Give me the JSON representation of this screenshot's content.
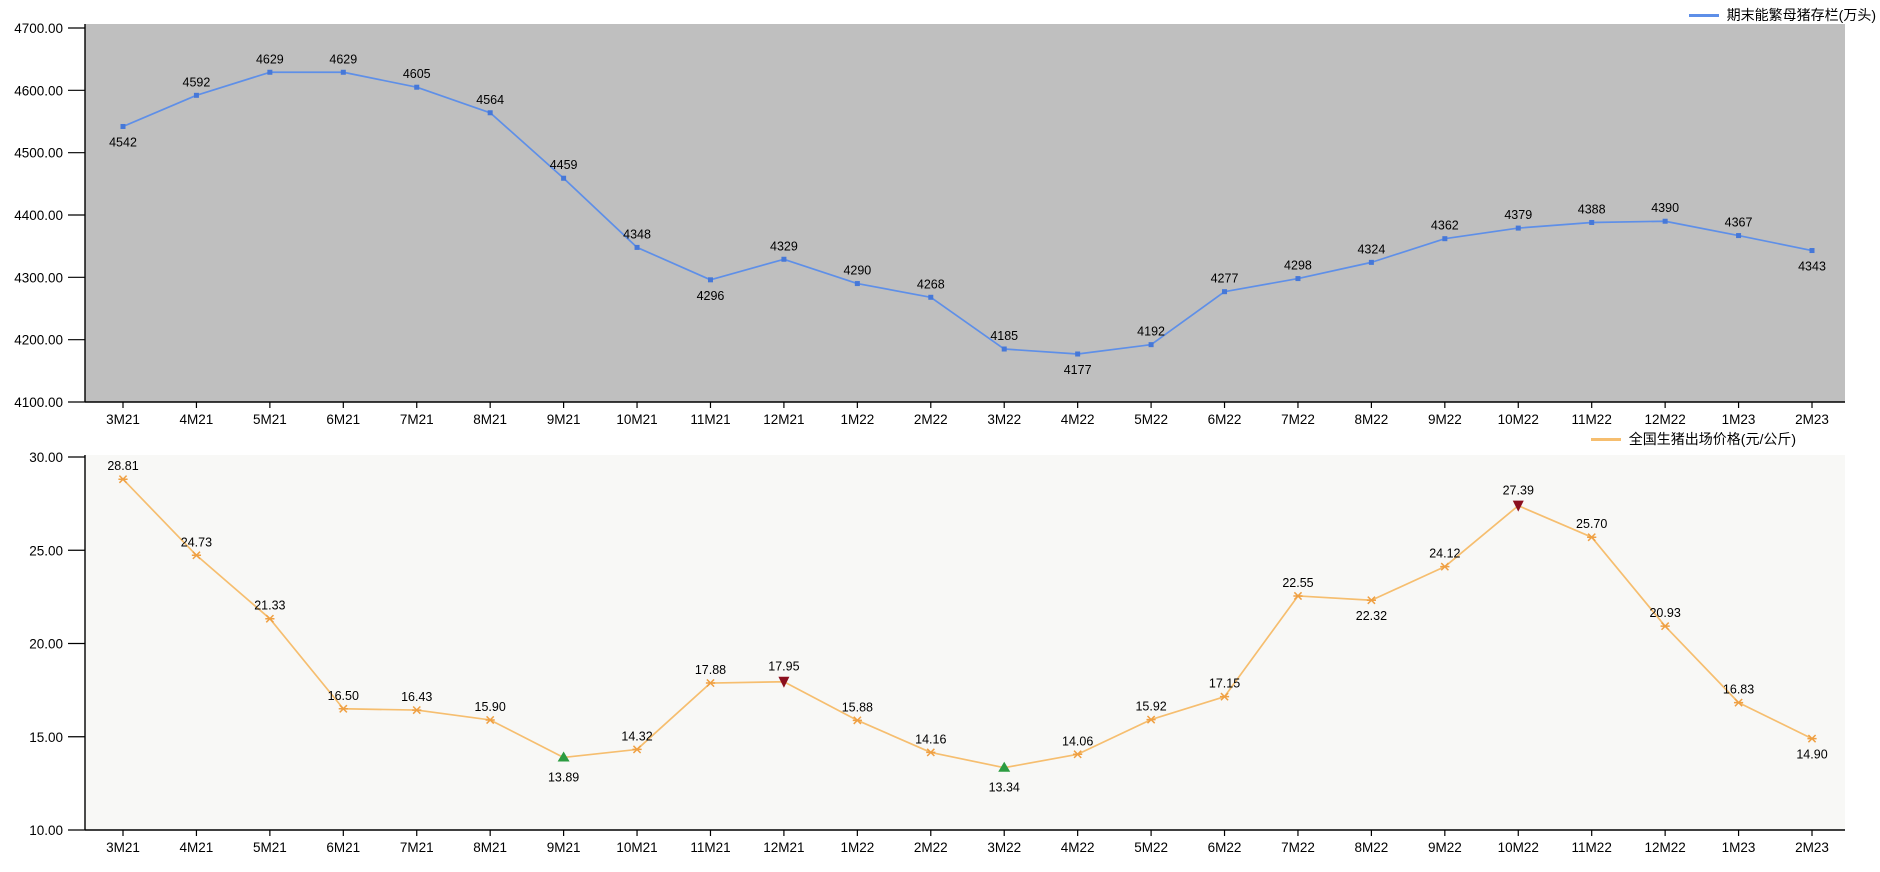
{
  "page": {
    "background": "#FFFFFF"
  },
  "chart_data": [
    {
      "type": "line",
      "title": "",
      "legend": "期末能繁母猪存栏(万头)",
      "legend_position": "top-right",
      "grid": false,
      "categories": [
        "3M21",
        "4M21",
        "5M21",
        "6M21",
        "7M21",
        "8M21",
        "9M21",
        "10M21",
        "11M21",
        "12M21",
        "1M22",
        "2M22",
        "3M22",
        "4M22",
        "5M22",
        "6M22",
        "7M22",
        "8M22",
        "9M22",
        "10M22",
        "11M22",
        "12M22",
        "1M23",
        "2M23"
      ],
      "values": [
        4542,
        4592,
        4629,
        4629,
        4605,
        4564,
        4459,
        4348,
        4296,
        4329,
        4290,
        4268,
        4185,
        4177,
        4192,
        4277,
        4298,
        4324,
        4362,
        4379,
        4388,
        4390,
        4367,
        4343
      ],
      "value_labels": [
        "4542",
        "4592",
        "4629",
        "4629",
        "4605",
        "4564",
        "4459",
        "4348",
        "4296",
        "4329",
        "4290",
        "4268",
        "4185",
        "4177",
        "4192",
        "4277",
        "4298",
        "4324",
        "4362",
        "4379",
        "4388",
        "4390",
        "4367",
        "4343"
      ],
      "label_side": [
        "below",
        "above",
        "above",
        "above",
        "above",
        "above",
        "above",
        "above",
        "below",
        "above",
        "above",
        "above",
        "above",
        "below",
        "above",
        "above",
        "above",
        "above",
        "above",
        "above",
        "above",
        "above",
        "above",
        "below"
      ],
      "ylim": [
        4100,
        4700
      ],
      "xlabel": "",
      "ylabel": "",
      "y_tick_labels": [
        "4700.00",
        "4600.00",
        "4500.00",
        "4400.00",
        "4300.00",
        "4200.00",
        "4100.00"
      ],
      "special_markers": [],
      "colors": {
        "line": "#5E8FE8",
        "marker": "#4678D8",
        "plot_bg": "#BFBFBF",
        "axis": "#000000",
        "text": "#000000"
      }
    },
    {
      "type": "line",
      "title": "",
      "legend": "全国生猪出场价格(元/公斤)",
      "legend_position": "top-right",
      "grid": false,
      "categories": [
        "3M21",
        "4M21",
        "5M21",
        "6M21",
        "7M21",
        "8M21",
        "9M21",
        "10M21",
        "11M21",
        "12M21",
        "1M22",
        "2M22",
        "3M22",
        "4M22",
        "5M22",
        "6M22",
        "7M22",
        "8M22",
        "9M22",
        "10M22",
        "11M22",
        "12M22",
        "1M23",
        "2M23"
      ],
      "values": [
        28.81,
        24.73,
        21.33,
        16.5,
        16.43,
        15.9,
        13.89,
        14.32,
        17.88,
        17.95,
        15.88,
        14.16,
        13.34,
        14.06,
        15.92,
        17.15,
        22.55,
        22.32,
        24.12,
        27.39,
        25.7,
        20.93,
        16.83,
        14.9
      ],
      "value_labels": [
        "28.81",
        "24.73",
        "21.33",
        "16.50",
        "16.43",
        "15.90",
        "13.89",
        "14.32",
        "17.88",
        "17.95",
        "15.88",
        "14.16",
        "13.34",
        "14.06",
        "15.92",
        "17.15",
        "22.55",
        "22.32",
        "24.12",
        "27.39",
        "25.70",
        "20.93",
        "16.83",
        "14.90"
      ],
      "label_side": [
        "above",
        "above",
        "above",
        "above",
        "above",
        "above",
        "below",
        "above",
        "above",
        "above",
        "above",
        "above",
        "below",
        "above",
        "above",
        "above",
        "above",
        "below",
        "above",
        "above",
        "above",
        "above",
        "above",
        "below"
      ],
      "ylim": [
        10,
        30
      ],
      "xlabel": "",
      "ylabel": "",
      "y_tick_labels": [
        "30.00",
        "25.00",
        "20.00",
        "15.00",
        "10.00"
      ],
      "special_markers": [
        {
          "index": 6,
          "shape": "triangle-up",
          "color": "#2C9C41"
        },
        {
          "index": 9,
          "shape": "triangle-down",
          "color": "#8B0F1E"
        },
        {
          "index": 12,
          "shape": "triangle-up",
          "color": "#2C9C41"
        },
        {
          "index": 19,
          "shape": "triangle-down",
          "color": "#8B0F1E"
        }
      ],
      "colors": {
        "line": "#F6BE6F",
        "marker": "#EFA043",
        "plot_bg": "#F8F8F6",
        "axis": "#000000",
        "text": "#000000"
      }
    }
  ]
}
